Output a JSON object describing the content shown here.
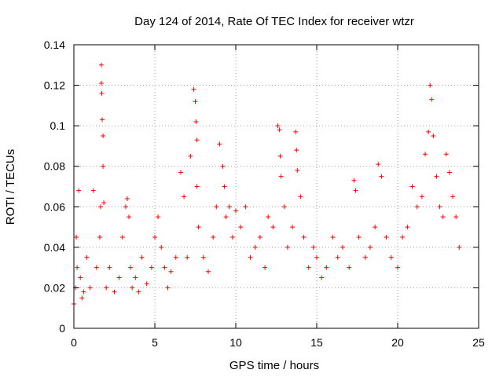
{
  "chart_data": {
    "type": "scatter",
    "title": "Day 124 of 2014, Rate Of TEC Index for receiver wtzr",
    "xlabel": "GPS time / hours",
    "ylabel": "ROTI / TECUs",
    "xlim": [
      0,
      25
    ],
    "ylim": [
      0,
      0.14
    ],
    "xticks": [
      0,
      5,
      10,
      15,
      20,
      25
    ],
    "xtick_labels": [
      "0",
      "5",
      "10",
      "15",
      "20",
      "25"
    ],
    "yticks": [
      0,
      0.02,
      0.04,
      0.06,
      0.08,
      0.1,
      0.12,
      0.14
    ],
    "ytick_labels": [
      "0",
      "0.02",
      "0.04",
      "0.06",
      "0.08",
      "0.1",
      "0.12",
      "0.14"
    ],
    "grid": true,
    "marker": "+",
    "series": [
      {
        "name": "ROTI",
        "color": "#ff0000",
        "x": [
          0.0,
          0.1,
          0.15,
          0.2,
          0.3,
          0.4,
          0.5,
          0.6,
          0.8,
          1.0,
          1.2,
          1.4,
          1.6,
          1.65,
          1.7,
          1.7,
          1.72,
          1.75,
          1.8,
          1.8,
          1.85,
          2.0,
          2.2,
          2.5,
          2.8,
          3.0,
          3.2,
          3.3,
          3.4,
          3.5,
          3.6,
          3.8,
          4.0,
          4.2,
          4.5,
          4.8,
          5.0,
          5.2,
          5.4,
          5.6,
          5.8,
          6.0,
          6.3,
          6.6,
          6.8,
          7.0,
          7.2,
          7.4,
          7.5,
          7.55,
          7.6,
          7.6,
          7.7,
          8.0,
          8.3,
          8.6,
          8.8,
          9.0,
          9.2,
          9.3,
          9.4,
          9.6,
          9.8,
          10.0,
          10.3,
          10.6,
          10.9,
          11.2,
          11.5,
          11.8,
          12.0,
          12.3,
          12.6,
          12.7,
          12.75,
          12.8,
          13.0,
          13.2,
          13.5,
          13.7,
          13.75,
          13.8,
          14.0,
          14.2,
          14.5,
          14.8,
          15.0,
          15.3,
          15.6,
          16.0,
          16.3,
          16.6,
          17.0,
          17.3,
          17.4,
          17.6,
          18.0,
          18.3,
          18.6,
          18.8,
          19.0,
          19.3,
          19.6,
          20.0,
          20.3,
          20.6,
          20.9,
          21.2,
          21.5,
          21.7,
          21.9,
          22.0,
          22.1,
          22.2,
          22.4,
          22.6,
          22.8,
          23.0,
          23.2,
          23.4,
          23.6,
          23.8
        ],
        "y": [
          0.012,
          0.02,
          0.045,
          0.03,
          0.068,
          0.025,
          0.015,
          0.018,
          0.035,
          0.02,
          0.068,
          0.03,
          0.045,
          0.06,
          0.13,
          0.121,
          0.116,
          0.103,
          0.095,
          0.08,
          0.062,
          0.02,
          0.03,
          0.018,
          0.025,
          0.045,
          0.06,
          0.064,
          0.055,
          0.03,
          0.02,
          0.025,
          0.018,
          0.035,
          0.022,
          0.03,
          0.045,
          0.055,
          0.04,
          0.03,
          0.02,
          0.028,
          0.035,
          0.077,
          0.065,
          0.035,
          0.085,
          0.118,
          0.112,
          0.102,
          0.093,
          0.07,
          0.05,
          0.035,
          0.028,
          0.045,
          0.06,
          0.091,
          0.08,
          0.07,
          0.055,
          0.06,
          0.045,
          0.058,
          0.05,
          0.06,
          0.035,
          0.04,
          0.045,
          0.03,
          0.055,
          0.05,
          0.1,
          0.098,
          0.085,
          0.075,
          0.06,
          0.04,
          0.05,
          0.097,
          0.088,
          0.078,
          0.065,
          0.045,
          0.03,
          0.04,
          0.035,
          0.025,
          0.03,
          0.045,
          0.035,
          0.04,
          0.03,
          0.073,
          0.068,
          0.045,
          0.035,
          0.04,
          0.05,
          0.081,
          0.075,
          0.045,
          0.035,
          0.03,
          0.045,
          0.05,
          0.07,
          0.06,
          0.065,
          0.086,
          0.097,
          0.12,
          0.113,
          0.095,
          0.075,
          0.06,
          0.055,
          0.086,
          0.077,
          0.065,
          0.055,
          0.04
        ]
      }
    ]
  }
}
